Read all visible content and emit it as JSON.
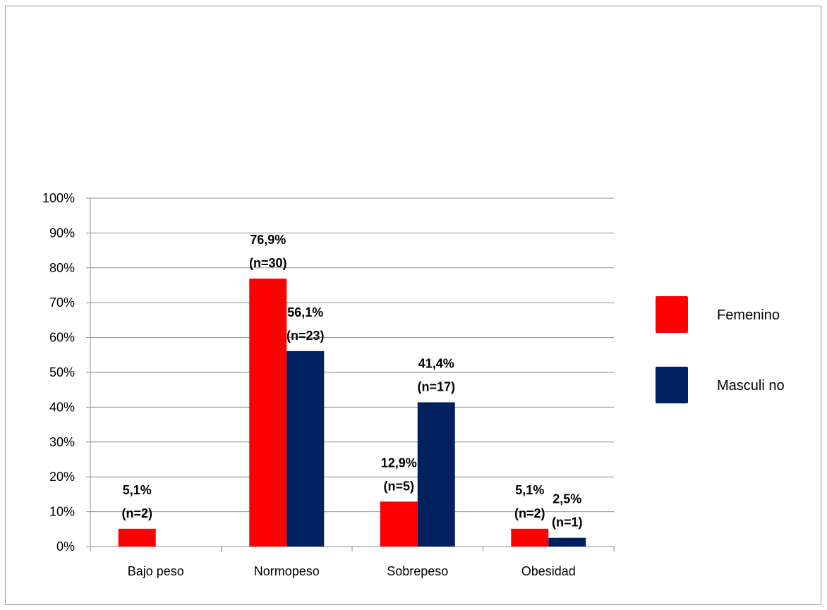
{
  "chart_data": {
    "type": "bar",
    "title": "",
    "xlabel": "",
    "ylabel": "",
    "ylim": [
      0,
      100
    ],
    "y_ticks": [
      "0%",
      "10%",
      "20%",
      "30%",
      "40%",
      "50%",
      "60%",
      "70%",
      "80%",
      "90%",
      "100%"
    ],
    "grid": true,
    "legend_position": "right",
    "categories": [
      "Bajo peso",
      "Normopeso",
      "Sobrepeso",
      "Obesidad"
    ],
    "series": [
      {
        "name": "Femenino",
        "color": "#ff0000",
        "values": [
          5.1,
          76.9,
          12.9,
          5.1
        ],
        "labels_pct": [
          "5,1%",
          "76,9%",
          "12,9%",
          "5,1%"
        ],
        "labels_n": [
          "(n=2)",
          "(n=30)",
          "(n=5)",
          "(n=2)"
        ]
      },
      {
        "name": "Masculi no",
        "color": "#002060",
        "values": [
          0,
          56.1,
          41.4,
          2.5
        ],
        "labels_pct": [
          "",
          "56,1%",
          "41,4%",
          "2,5%"
        ],
        "labels_n": [
          "",
          "(n=23)",
          "(n=17)",
          "(n=1)"
        ]
      }
    ]
  }
}
